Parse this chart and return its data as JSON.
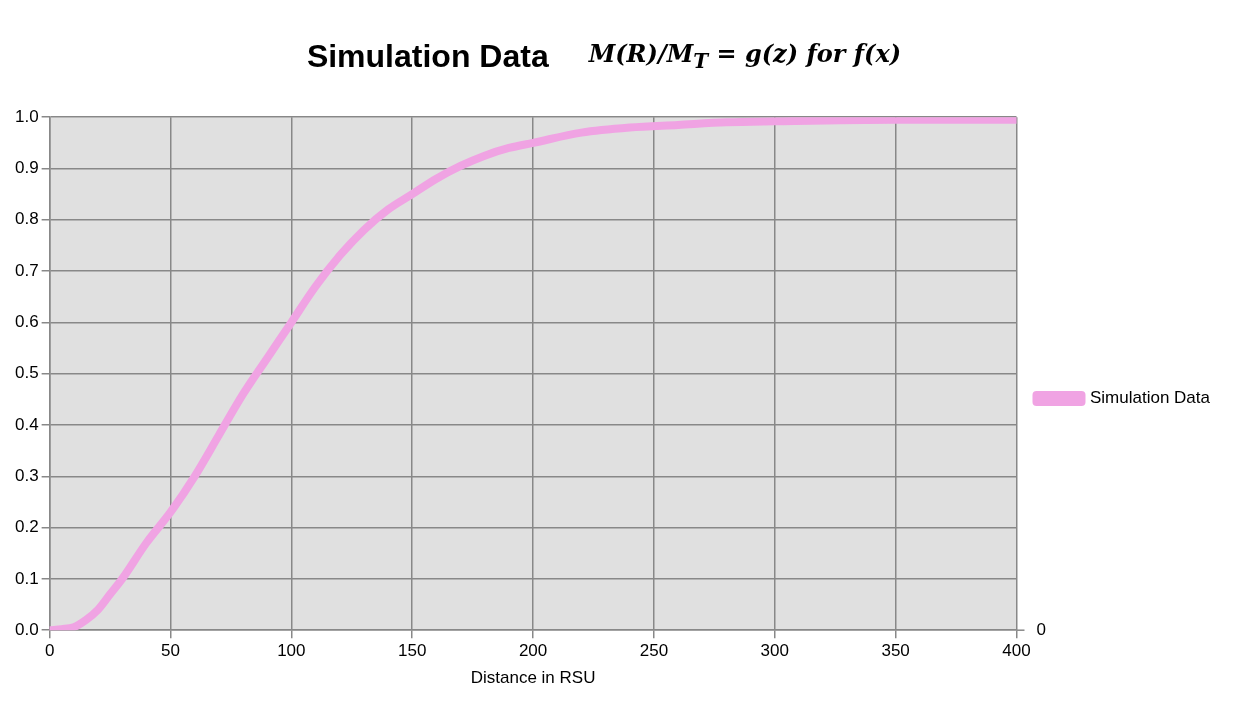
{
  "chart_data": {
    "type": "line",
    "title": "Simulation Data",
    "subtitle": "M(R)/M$_{T}$ = g(z) for f(x)",
    "xlabel": "Distance in RSU",
    "x": [
      0,
      5,
      10,
      15,
      20,
      25,
      30,
      40,
      50,
      60,
      70,
      80,
      90,
      100,
      110,
      120,
      130,
      140,
      150,
      160,
      170,
      180,
      190,
      200,
      220,
      240,
      260,
      280,
      300,
      350,
      400
    ],
    "series": [
      {
        "name": "Simulation Data",
        "color": "#f0a3e3",
        "values": [
          0,
          0.002,
          0.006,
          0.02,
          0.04,
          0.07,
          0.1,
          0.17,
          0.23,
          0.3,
          0.38,
          0.46,
          0.53,
          0.6,
          0.67,
          0.73,
          0.78,
          0.82,
          0.85,
          0.88,
          0.905,
          0.925,
          0.94,
          0.95,
          0.97,
          0.98,
          0.985,
          0.99,
          0.992,
          0.995,
          0.995
        ]
      }
    ],
    "xlim": [
      0,
      400
    ],
    "xticks": [
      0,
      50,
      100,
      150,
      200,
      250,
      300,
      350,
      400
    ],
    "ylim": [
      0,
      1
    ],
    "yticks": [
      {
        "value": 0,
        "label": "0.0"
      },
      {
        "value": 0.1,
        "label": "0.1"
      },
      {
        "value": 0.2,
        "label": "0.2"
      },
      {
        "value": 0.3,
        "label": "0.3"
      },
      {
        "value": 0.4,
        "label": "0.4"
      },
      {
        "value": 0.5,
        "label": "0.5"
      },
      {
        "value": 0.6,
        "label": "0.6"
      },
      {
        "value": 0.7,
        "label": "0.7"
      },
      {
        "value": 0.8,
        "label": "0.8"
      },
      {
        "value": 0.9,
        "label": "0.9"
      },
      {
        "value": 1,
        "label": "1.0"
      }
    ],
    "annotations": [
      "0"
    ],
    "grid": true,
    "legend": "right",
    "marker": "none",
    "line_style": "solid"
  }
}
